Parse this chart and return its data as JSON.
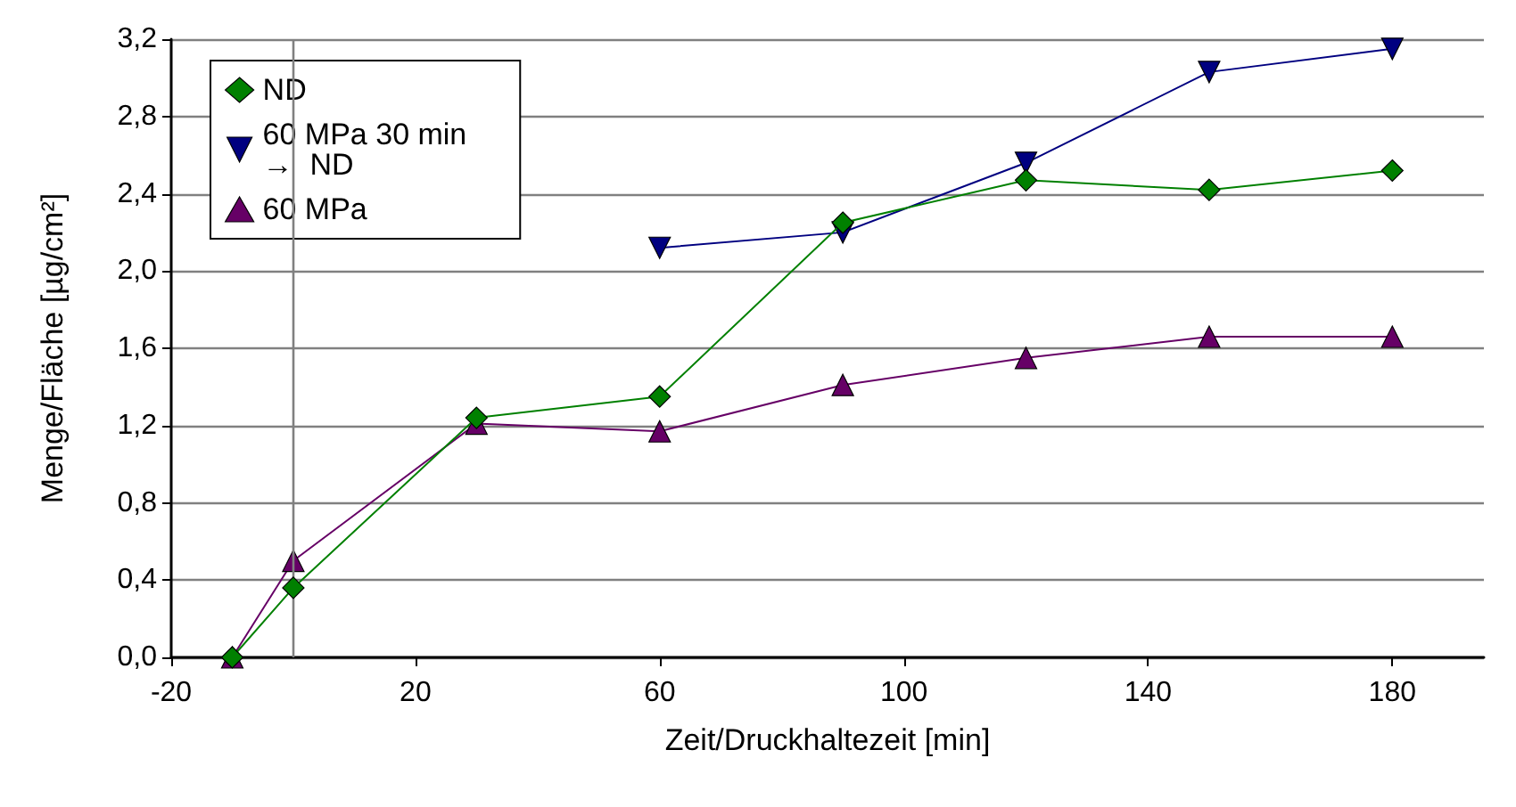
{
  "chart_data": {
    "type": "line",
    "xlabel": "Zeit/Druckhaltezeit [min]",
    "ylabel": "Menge/Fläche [µg/cm²]",
    "xlim": [
      -20,
      195
    ],
    "xticks": [
      -20,
      20,
      60,
      100,
      140,
      180
    ],
    "ylim": [
      0,
      3.2
    ],
    "yticks": [
      {
        "value": 0,
        "label": "0,0"
      },
      {
        "value": 0.4,
        "label": "0,4"
      },
      {
        "value": 0.8,
        "label": "0,8"
      },
      {
        "value": 1.2,
        "label": "1,2"
      },
      {
        "value": 1.6,
        "label": "1,6"
      },
      {
        "value": 2.0,
        "label": "2,0"
      },
      {
        "value": 2.4,
        "label": "2,4"
      },
      {
        "value": 2.8,
        "label": "2,8"
      },
      {
        "value": 3.2,
        "label": "3,2"
      }
    ],
    "grid": "y",
    "legend": "top left",
    "line_style": "solid",
    "ref_lines": [
      {
        "axis": "x",
        "value": 0,
        "color": "#808080"
      }
    ],
    "series": [
      {
        "name": "ND",
        "color": "#008000",
        "marker": "diamond",
        "x": [
          -10,
          0,
          30,
          60,
          90,
          120,
          150,
          180
        ],
        "values": [
          0,
          0.36,
          1.24,
          1.35,
          2.25,
          2.47,
          2.42,
          2.52
        ]
      },
      {
        "name": "60 MPa 30 min\n→  ND",
        "color": "#000080",
        "marker": "triangle-down",
        "x": [
          60,
          90,
          120,
          150,
          180
        ],
        "values": [
          2.12,
          2.2,
          2.56,
          3.03,
          3.15
        ]
      },
      {
        "name": "60 MPa",
        "color": "#660066",
        "marker": "triangle",
        "x": [
          -10,
          0,
          30,
          60,
          90,
          120,
          150,
          180
        ],
        "values": [
          0,
          0.5,
          1.21,
          1.17,
          1.41,
          1.55,
          1.66,
          1.66
        ]
      }
    ]
  }
}
